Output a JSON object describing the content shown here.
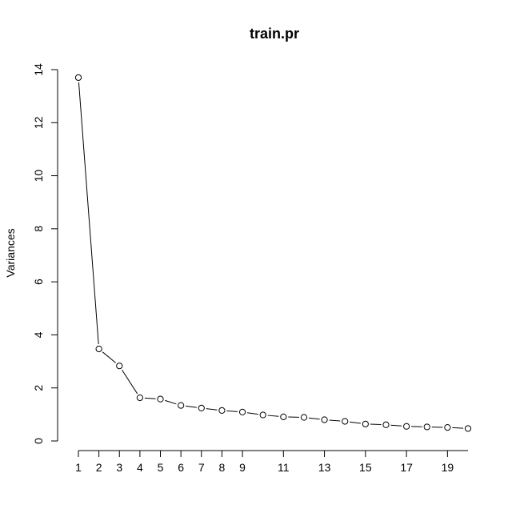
{
  "chart_data": {
    "type": "line",
    "title": "train.pr",
    "xlabel": "",
    "ylabel": "Variances",
    "x": [
      1,
      2,
      3,
      4,
      5,
      6,
      7,
      8,
      9,
      10,
      11,
      12,
      13,
      14,
      15,
      16,
      17,
      18,
      19,
      20
    ],
    "x_tick_values": [
      1,
      2,
      3,
      4,
      5,
      6,
      7,
      8,
      9,
      11,
      13,
      15,
      17,
      19
    ],
    "x_tick_labels": [
      "1",
      "2",
      "3",
      "4",
      "5",
      "6",
      "7",
      "8",
      "9",
      "11",
      "13",
      "15",
      "17",
      "19"
    ],
    "series": [
      {
        "values": [
          13.7,
          3.47,
          2.83,
          1.63,
          1.58,
          1.34,
          1.24,
          1.15,
          1.09,
          0.98,
          0.91,
          0.89,
          0.8,
          0.74,
          0.64,
          0.61,
          0.55,
          0.53,
          0.51,
          0.47
        ]
      }
    ],
    "y_tick_values": [
      0,
      2,
      4,
      6,
      8,
      10,
      12,
      14
    ],
    "y_tick_labels": [
      "0",
      "2",
      "4",
      "6",
      "8",
      "10",
      "12",
      "14"
    ],
    "xlim": [
      1,
      20
    ],
    "ylim": [
      0,
      14
    ],
    "grid": false,
    "legend": "none",
    "colors": {
      "line": "#000000",
      "marker_fill": "#ffffff",
      "background": "#ffffff"
    }
  }
}
